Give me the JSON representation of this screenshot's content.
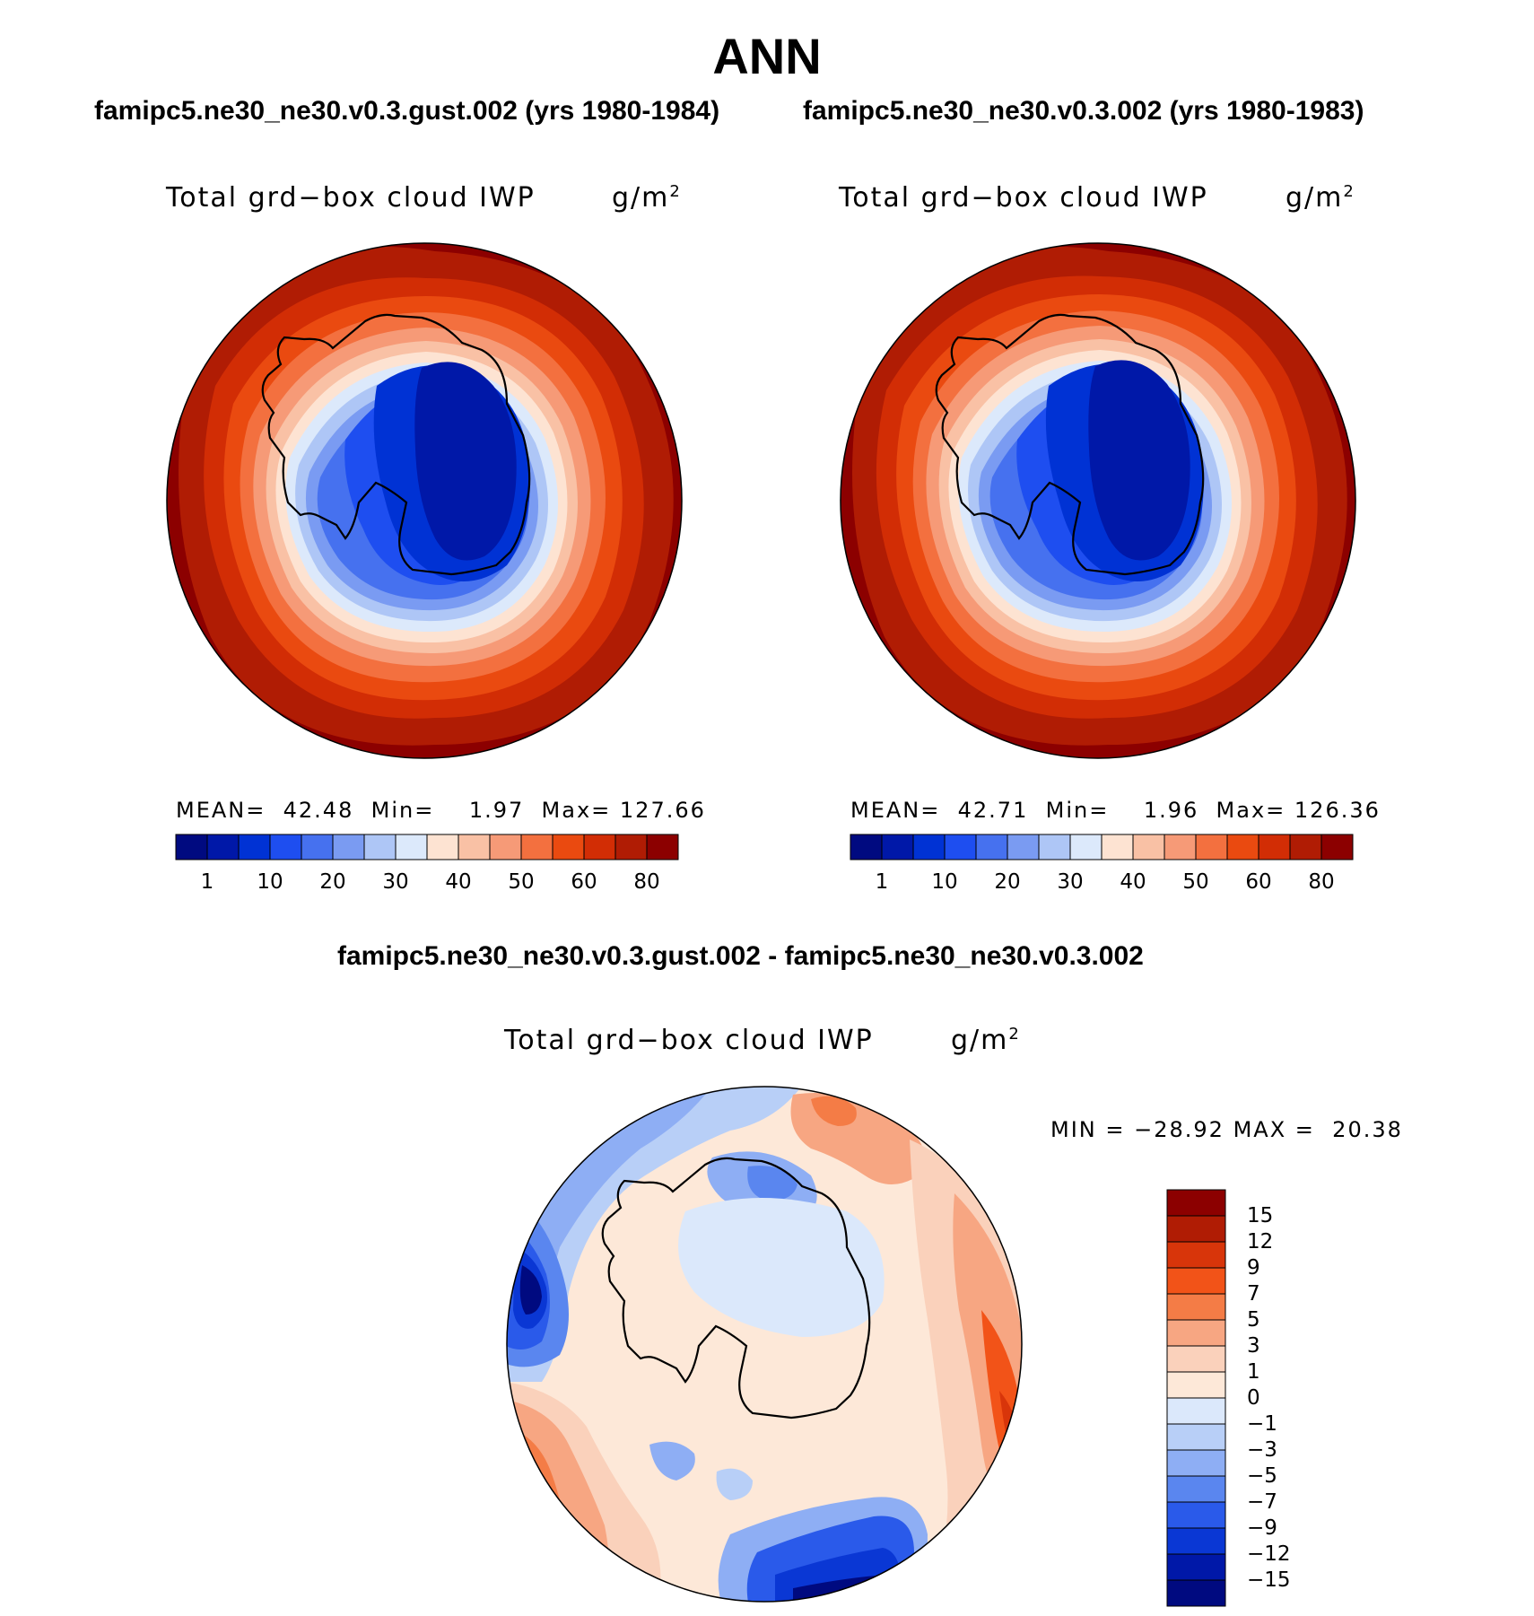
{
  "figure": {
    "title": "ANN"
  },
  "panels": [
    {
      "case_title": "famipc5.ne30_ne30.v0.3.gust.002 (yrs 1980-1984)",
      "variable": "Total grd−box cloud IWP",
      "units_base": "g/m",
      "units_exp": "2",
      "stats": {
        "mean_label": "MEAN=",
        "mean": "42.48",
        "min_label": "Min=",
        "min": "1.97",
        "max_label": "Max=",
        "max": "127.66"
      },
      "colorbar_ticks": [
        "1",
        "10",
        "20",
        "30",
        "40",
        "50",
        "60",
        "80"
      ]
    },
    {
      "case_title": "famipc5.ne30_ne30.v0.3.002 (yrs 1980-1983)",
      "variable": "Total grd−box cloud IWP",
      "units_base": "g/m",
      "units_exp": "2",
      "stats": {
        "mean_label": "MEAN=",
        "mean": "42.71",
        "min_label": "Min=",
        "min": "1.96",
        "max_label": "Max=",
        "max": "126.36"
      },
      "colorbar_ticks": [
        "1",
        "10",
        "20",
        "30",
        "40",
        "50",
        "60",
        "80"
      ]
    }
  ],
  "difference": {
    "title": "famipc5.ne30_ne30.v0.3.gust.002 - famipc5.ne30_ne30.v0.3.002",
    "variable": "Total grd−box cloud IWP",
    "units_base": "g/m",
    "units_exp": "2",
    "min_label": "MIN =",
    "min": "−28.92",
    "max_label": "MAX =",
    "max": "20.38",
    "colorbar_ticks": [
      "15",
      "12",
      "9",
      "7",
      "5",
      "3",
      "1",
      "0",
      "−1",
      "−3",
      "−5",
      "−7",
      "−9",
      "−12",
      "−15"
    ]
  },
  "colors": {
    "sequential": [
      "#000a80",
      "#0018a8",
      "#0032d4",
      "#1e4ef0",
      "#4671ef",
      "#7a9bf2",
      "#aec6f6",
      "#dce9fb",
      "#fde3d2",
      "#f9c1a5",
      "#f69a77",
      "#f3703f",
      "#ea4a10",
      "#d22d05",
      "#b01c04",
      "#8c0000"
    ],
    "diverging": [
      "#8c0000",
      "#b01c04",
      "#d8350a",
      "#f25318",
      "#f47c46",
      "#f7a682",
      "#fad1bb",
      "#fde8d8",
      "#dbe8fb",
      "#b8cff7",
      "#8eaef4",
      "#5a86ef",
      "#2a5aea",
      "#0a37d4",
      "#0018a8",
      "#000a80"
    ]
  }
}
